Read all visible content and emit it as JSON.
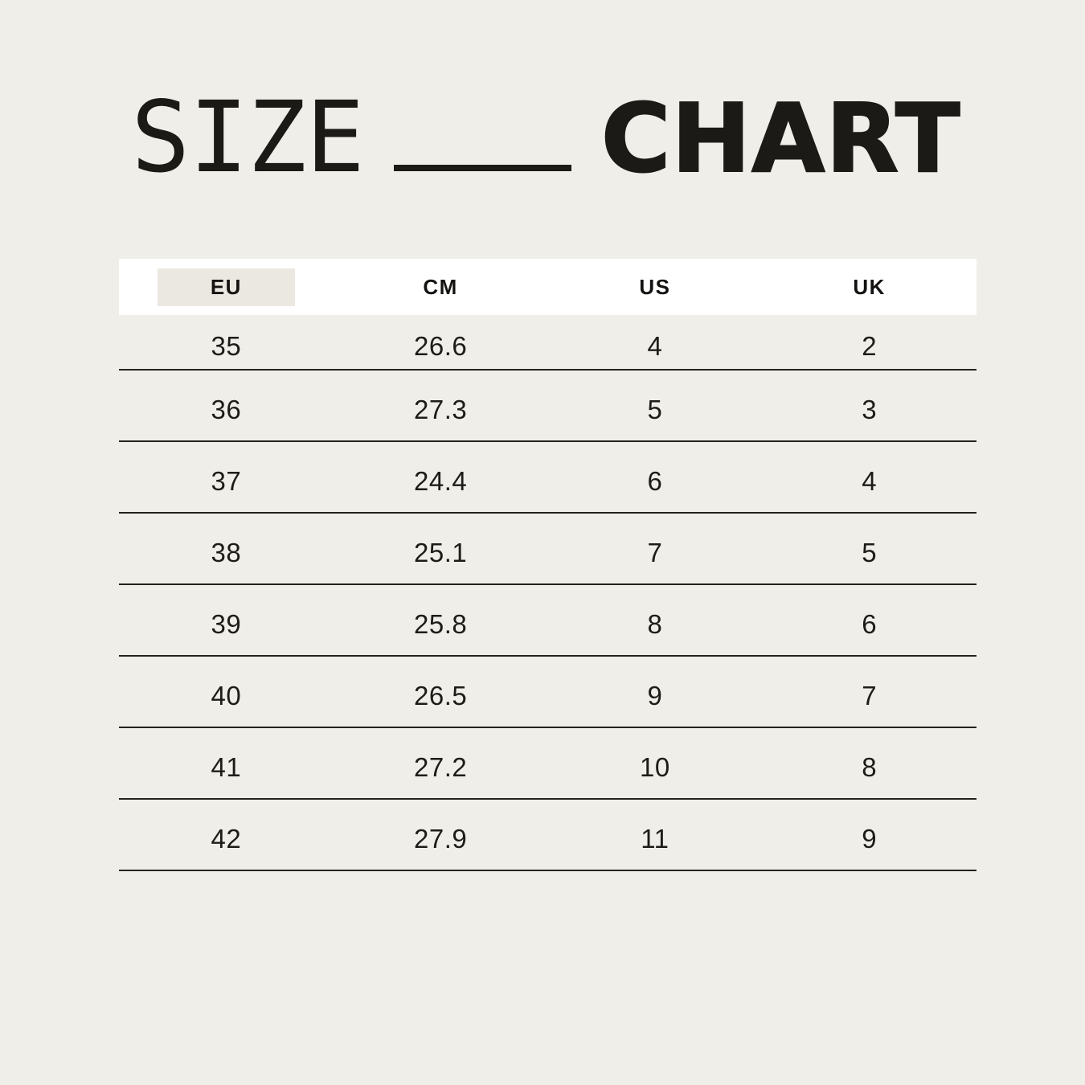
{
  "title": {
    "word_left": "SIZE",
    "word_right": "CHART"
  },
  "size_table": {
    "header": {
      "columns": [
        "EU",
        "CM",
        "US",
        "UK"
      ],
      "highlighted_column": "EU"
    },
    "rows": [
      {
        "eu": "35",
        "cm": "26.6",
        "us": "4",
        "uk": "2"
      },
      {
        "eu": "36",
        "cm": "27.3",
        "us": "5",
        "uk": "3"
      },
      {
        "eu": "37",
        "cm": "24.4",
        "us": "6",
        "uk": "4"
      },
      {
        "eu": "38",
        "cm": "25.1",
        "us": "7",
        "uk": "5"
      },
      {
        "eu": "39",
        "cm": "25.8",
        "us": "8",
        "uk": "6"
      },
      {
        "eu": "40",
        "cm": "26.5",
        "us": "9",
        "uk": "7"
      },
      {
        "eu": "41",
        "cm": "27.2",
        "us": "10",
        "uk": "8"
      },
      {
        "eu": "42",
        "cm": "27.9",
        "us": "11",
        "uk": "9"
      }
    ]
  },
  "colors": {
    "background": "#F0EEE9",
    "ink": "#1C1A17",
    "table_header_background": "#FFFFFF",
    "highlight_background": "#EBE8E1",
    "rule": "#23221F"
  },
  "chart_data": {
    "type": "table",
    "title": "SIZE CHART",
    "columns": [
      "EU",
      "CM",
      "US",
      "UK"
    ],
    "rows": [
      [
        "35",
        "26.6",
        "4",
        "2"
      ],
      [
        "36",
        "27.3",
        "5",
        "3"
      ],
      [
        "37",
        "24.4",
        "6",
        "4"
      ],
      [
        "38",
        "25.1",
        "7",
        "5"
      ],
      [
        "39",
        "25.8",
        "8",
        "6"
      ],
      [
        "40",
        "26.5",
        "9",
        "7"
      ],
      [
        "41",
        "27.2",
        "10",
        "8"
      ],
      [
        "42",
        "27.9",
        "11",
        "9"
      ]
    ],
    "layout": {
      "header_highlight": "EU column has beige highlight box on white header band",
      "grid": "horizontal rules only, below each data row",
      "legend": "none"
    }
  }
}
